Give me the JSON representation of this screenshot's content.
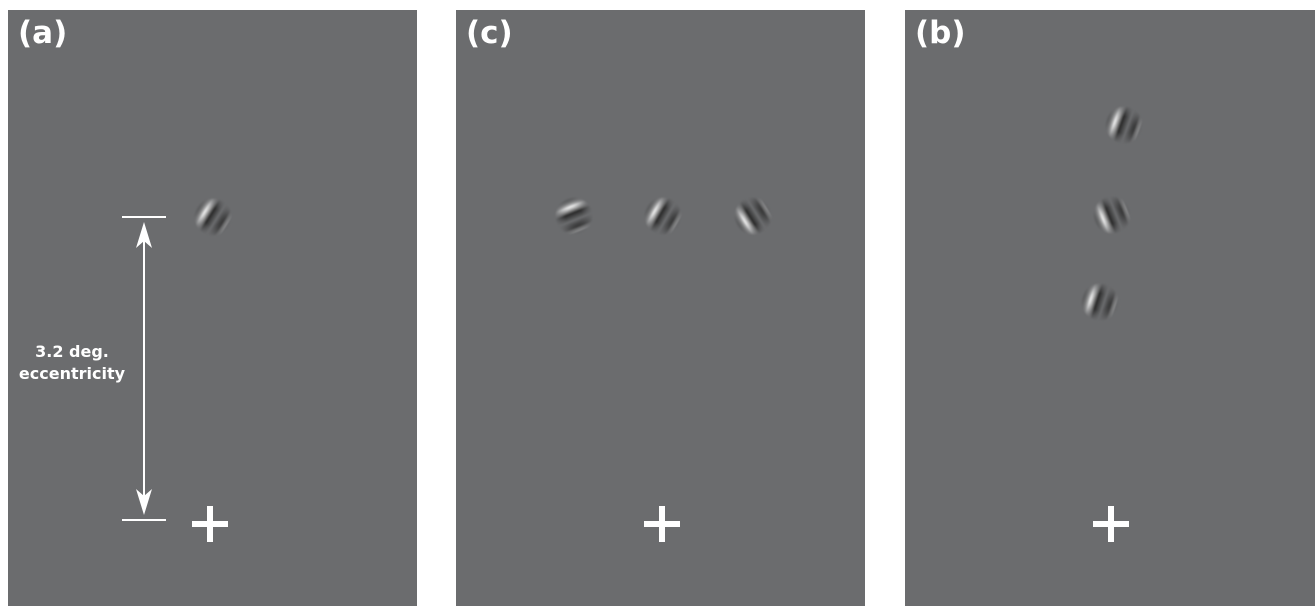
{
  "panels": [
    {
      "label": "(a)",
      "annotation": {
        "line1": "3.2 deg.",
        "line2": "eccentricity"
      }
    },
    {
      "label": "(c)"
    },
    {
      "label": "(b)"
    }
  ],
  "fixation_symbol": "+",
  "colors": {
    "background": "#6b6c6e",
    "foreground": "#ffffff"
  }
}
